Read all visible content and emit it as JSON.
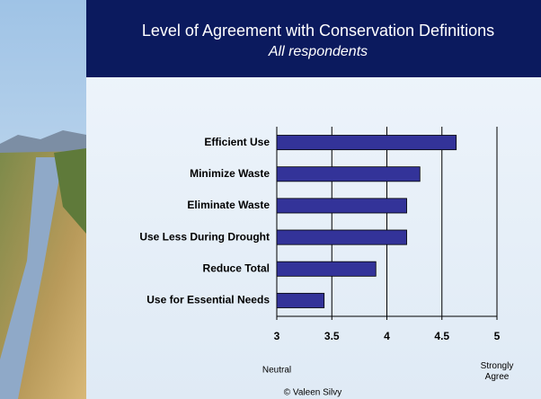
{
  "chart_data": {
    "type": "bar",
    "orientation": "horizontal",
    "title": "Level of Agreement with Conservation Definitions",
    "subtitle": "All respondents",
    "categories": [
      "Efficient Use",
      "Minimize Waste",
      "Eliminate Waste",
      "Use Less During Drought",
      "Reduce Total",
      "Use for Essential Needs"
    ],
    "values": [
      4.63,
      4.3,
      4.18,
      4.18,
      3.9,
      3.43
    ],
    "color": "#333399",
    "xlim": [
      3,
      5
    ],
    "xticks": [
      3,
      3.5,
      4,
      4.5,
      5
    ],
    "grid": true,
    "annotations": [
      "Neutral",
      "Strongly Agree"
    ]
  },
  "footer": "© Valeen Silvy"
}
